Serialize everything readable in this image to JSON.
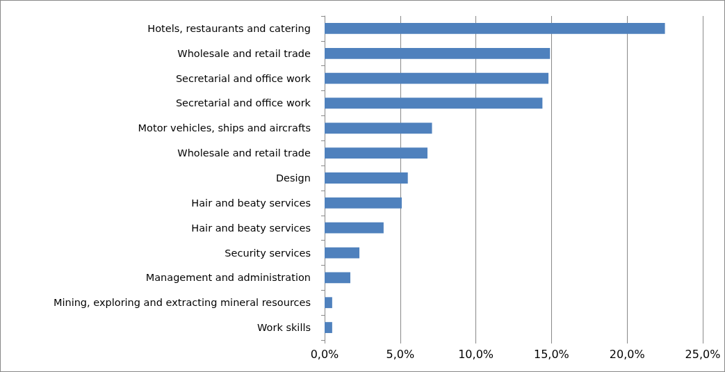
{
  "chart_data": {
    "type": "bar",
    "orientation": "horizontal",
    "categories": [
      "Hotels, restaurants and catering",
      "Wholesale and retail trade",
      "Secretarial and office work",
      "Secretarial and office work",
      "Motor vehicles, ships and aircrafts",
      "Wholesale and retail trade",
      "Design",
      "Hair and beaty services",
      "Hair and beaty services",
      "Security services",
      "Management and administration",
      "Mining, exploring and extracting mineral resources",
      "Work skills"
    ],
    "values": [
      22.5,
      14.9,
      14.8,
      14.4,
      7.1,
      6.8,
      5.5,
      5.1,
      3.9,
      2.3,
      1.7,
      0.5,
      0.5
    ],
    "color": "#4f81bd",
    "xlim": [
      0,
      25
    ],
    "xticks": [
      {
        "value": 0,
        "label": "0,0%"
      },
      {
        "value": 5,
        "label": "5,0%"
      },
      {
        "value": 10,
        "label": "10,0%"
      },
      {
        "value": 15,
        "label": "15,0%"
      },
      {
        "value": 20,
        "label": "20,0%"
      },
      {
        "value": 25,
        "label": "25,0%"
      }
    ],
    "grid": "x"
  }
}
